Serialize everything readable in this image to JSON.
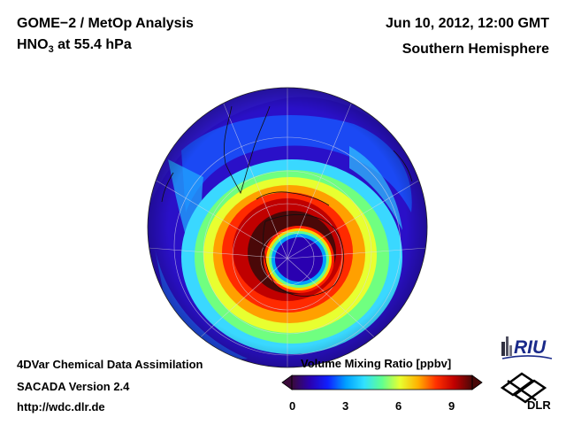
{
  "header": {
    "title_line1": "GOME−2 / MetOp Analysis",
    "title_line2_species": "HNO",
    "title_line2_subscript": "3",
    "title_line2_rest": " at 55.4 hPa",
    "date": "Jun 10, 2012, 12:00 GMT",
    "region": "Southern Hemisphere"
  },
  "footer": {
    "line1": "4DVar Chemical Data Assimilation",
    "line2": "SACADA Version 2.4",
    "line3": "http://wdc.dlr.de"
  },
  "colorbar": {
    "title": "Volume Mixing Ratio [ppbv]",
    "ticks": [
      "0",
      "3",
      "6",
      "9"
    ],
    "colors": [
      "#3a0a3a",
      "#2a00b0",
      "#1020ff",
      "#00a0ff",
      "#30e0ff",
      "#60ff90",
      "#e8ff30",
      "#ffb000",
      "#ff3000",
      "#c00000",
      "#4a0808"
    ]
  },
  "logos": {
    "riu": "RIU",
    "dlr": "DLR"
  },
  "map": {
    "projection": "orthographic south-polar",
    "field_levels_ppbv": {
      "background": 1.5,
      "outer_ring": 4.5,
      "collar": 9,
      "vortex_core": 1
    }
  }
}
